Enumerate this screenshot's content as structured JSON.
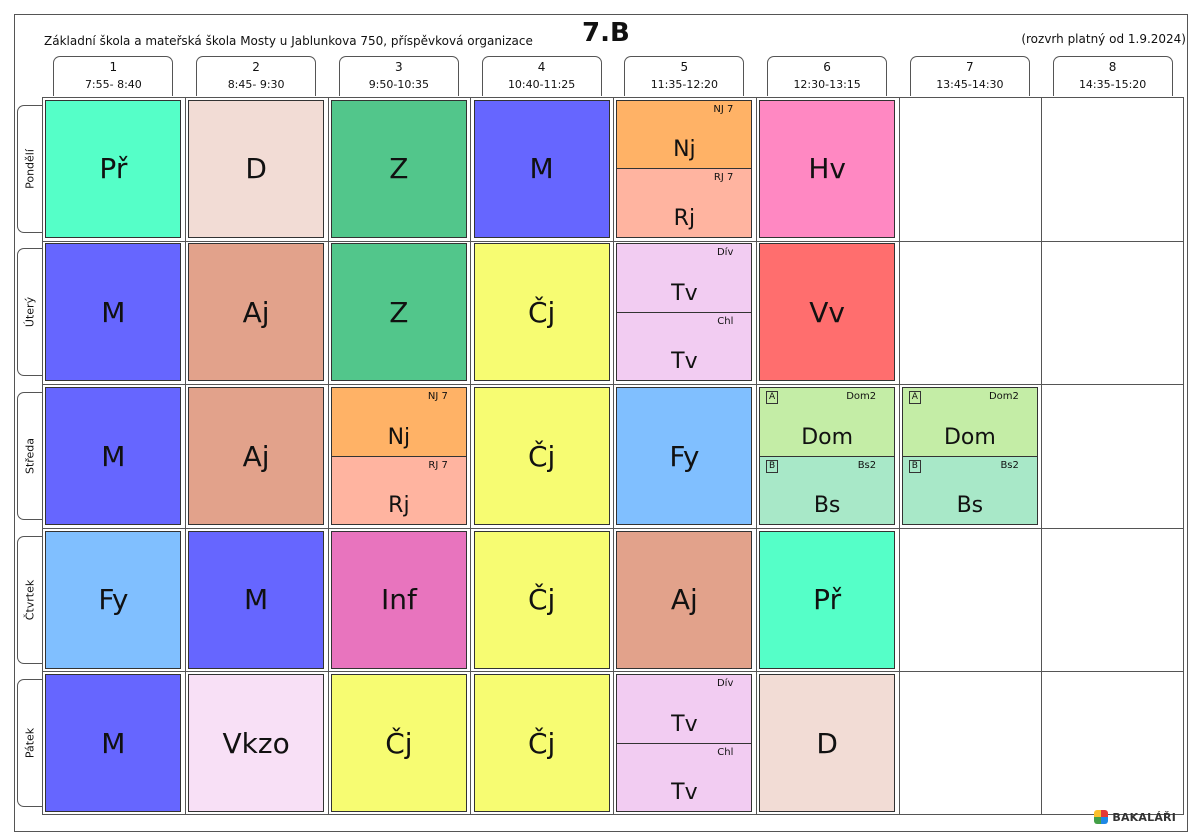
{
  "header": {
    "school": "Základní škola a mateřská škola Mosty u Jablunkova 750, příspěvková organizace",
    "class_name": "7.B",
    "valid_from": "(rozvrh platný od 1.9.2024)"
  },
  "periods": [
    {
      "num": "1",
      "time": "7:55- 8:40"
    },
    {
      "num": "2",
      "time": "8:45- 9:30"
    },
    {
      "num": "3",
      "time": "9:50-10:35"
    },
    {
      "num": "4",
      "time": "10:40-11:25"
    },
    {
      "num": "5",
      "time": "11:35-12:20"
    },
    {
      "num": "6",
      "time": "12:30-13:15"
    },
    {
      "num": "7",
      "time": "13:45-14:30"
    },
    {
      "num": "8",
      "time": "14:35-15:20"
    }
  ],
  "days": [
    {
      "label": "Pondělí",
      "lessons": [
        {
          "p": 0,
          "subject": "Př",
          "color": "#55ffc8"
        },
        {
          "p": 1,
          "subject": "D",
          "color": "#f2dcd5"
        },
        {
          "p": 2,
          "subject": "Z",
          "color": "#52c68b"
        },
        {
          "p": 3,
          "subject": "M",
          "color": "#6666ff"
        },
        {
          "p": 4,
          "split": [
            {
              "subject": "Nj",
              "group": "NJ 7",
              "color": "#ffb266"
            },
            {
              "subject": "Rj",
              "group": "RJ 7",
              "color": "#ffb4a0"
            }
          ]
        },
        {
          "p": 5,
          "subject": "Hv",
          "color": "#ff88c2"
        }
      ]
    },
    {
      "label": "Úterý",
      "lessons": [
        {
          "p": 0,
          "subject": "M",
          "color": "#6666ff"
        },
        {
          "p": 1,
          "subject": "Aj",
          "color": "#e2a28b"
        },
        {
          "p": 2,
          "subject": "Z",
          "color": "#52c68b"
        },
        {
          "p": 3,
          "subject": "Čj",
          "color": "#f7fc72"
        },
        {
          "p": 4,
          "split": [
            {
              "subject": "Tv",
              "group": "Dív",
              "color": "#f2ccf2"
            },
            {
              "subject": "Tv",
              "group": "Chl",
              "color": "#f2ccf2"
            }
          ]
        },
        {
          "p": 5,
          "subject": "Vv",
          "color": "#ff6e6e"
        }
      ]
    },
    {
      "label": "Středa",
      "lessons": [
        {
          "p": 0,
          "subject": "M",
          "color": "#6666ff"
        },
        {
          "p": 1,
          "subject": "Aj",
          "color": "#e2a28b"
        },
        {
          "p": 2,
          "split": [
            {
              "subject": "Nj",
              "group": "NJ 7",
              "color": "#ffb266"
            },
            {
              "subject": "Rj",
              "group": "RJ 7",
              "color": "#ffb4a0"
            }
          ]
        },
        {
          "p": 3,
          "subject": "Čj",
          "color": "#f7fc72"
        },
        {
          "p": 4,
          "subject": "Fy",
          "color": "#80bfff"
        },
        {
          "p": 5,
          "split": [
            {
              "subject": "Dom",
              "group": "Dom2",
              "label": "A",
              "color": "#c4eda6"
            },
            {
              "subject": "Bs",
              "group": "Bs2",
              "label": "B",
              "color": "#a8e8c8"
            }
          ]
        },
        {
          "p": 6,
          "split": [
            {
              "subject": "Dom",
              "group": "Dom2",
              "label": "A",
              "color": "#c4eda6"
            },
            {
              "subject": "Bs",
              "group": "Bs2",
              "label": "B",
              "color": "#a8e8c8"
            }
          ]
        }
      ]
    },
    {
      "label": "Čtvrtek",
      "lessons": [
        {
          "p": 0,
          "subject": "Fy",
          "color": "#80bfff"
        },
        {
          "p": 1,
          "subject": "M",
          "color": "#6666ff"
        },
        {
          "p": 2,
          "subject": "Inf",
          "color": "#e874be"
        },
        {
          "p": 3,
          "subject": "Čj",
          "color": "#f7fc72"
        },
        {
          "p": 4,
          "subject": "Aj",
          "color": "#e2a28b"
        },
        {
          "p": 5,
          "subject": "Př",
          "color": "#55ffc8"
        }
      ]
    },
    {
      "label": "Pátek",
      "lessons": [
        {
          "p": 0,
          "subject": "M",
          "color": "#6666ff"
        },
        {
          "p": 1,
          "subject": "Vkzo",
          "color": "#f8e0f6"
        },
        {
          "p": 2,
          "subject": "Čj",
          "color": "#f7fc72"
        },
        {
          "p": 3,
          "subject": "Čj",
          "color": "#f7fc72"
        },
        {
          "p": 4,
          "split": [
            {
              "subject": "Tv",
              "group": "Dív",
              "color": "#f2ccf2"
            },
            {
              "subject": "Tv",
              "group": "Chl",
              "color": "#f2ccf2"
            }
          ]
        },
        {
          "p": 5,
          "subject": "D",
          "color": "#f2dcd5"
        }
      ]
    }
  ],
  "footer": {
    "brand": "BAKALÁŘI",
    "brand_icon": "bakalari-logo-icon"
  }
}
